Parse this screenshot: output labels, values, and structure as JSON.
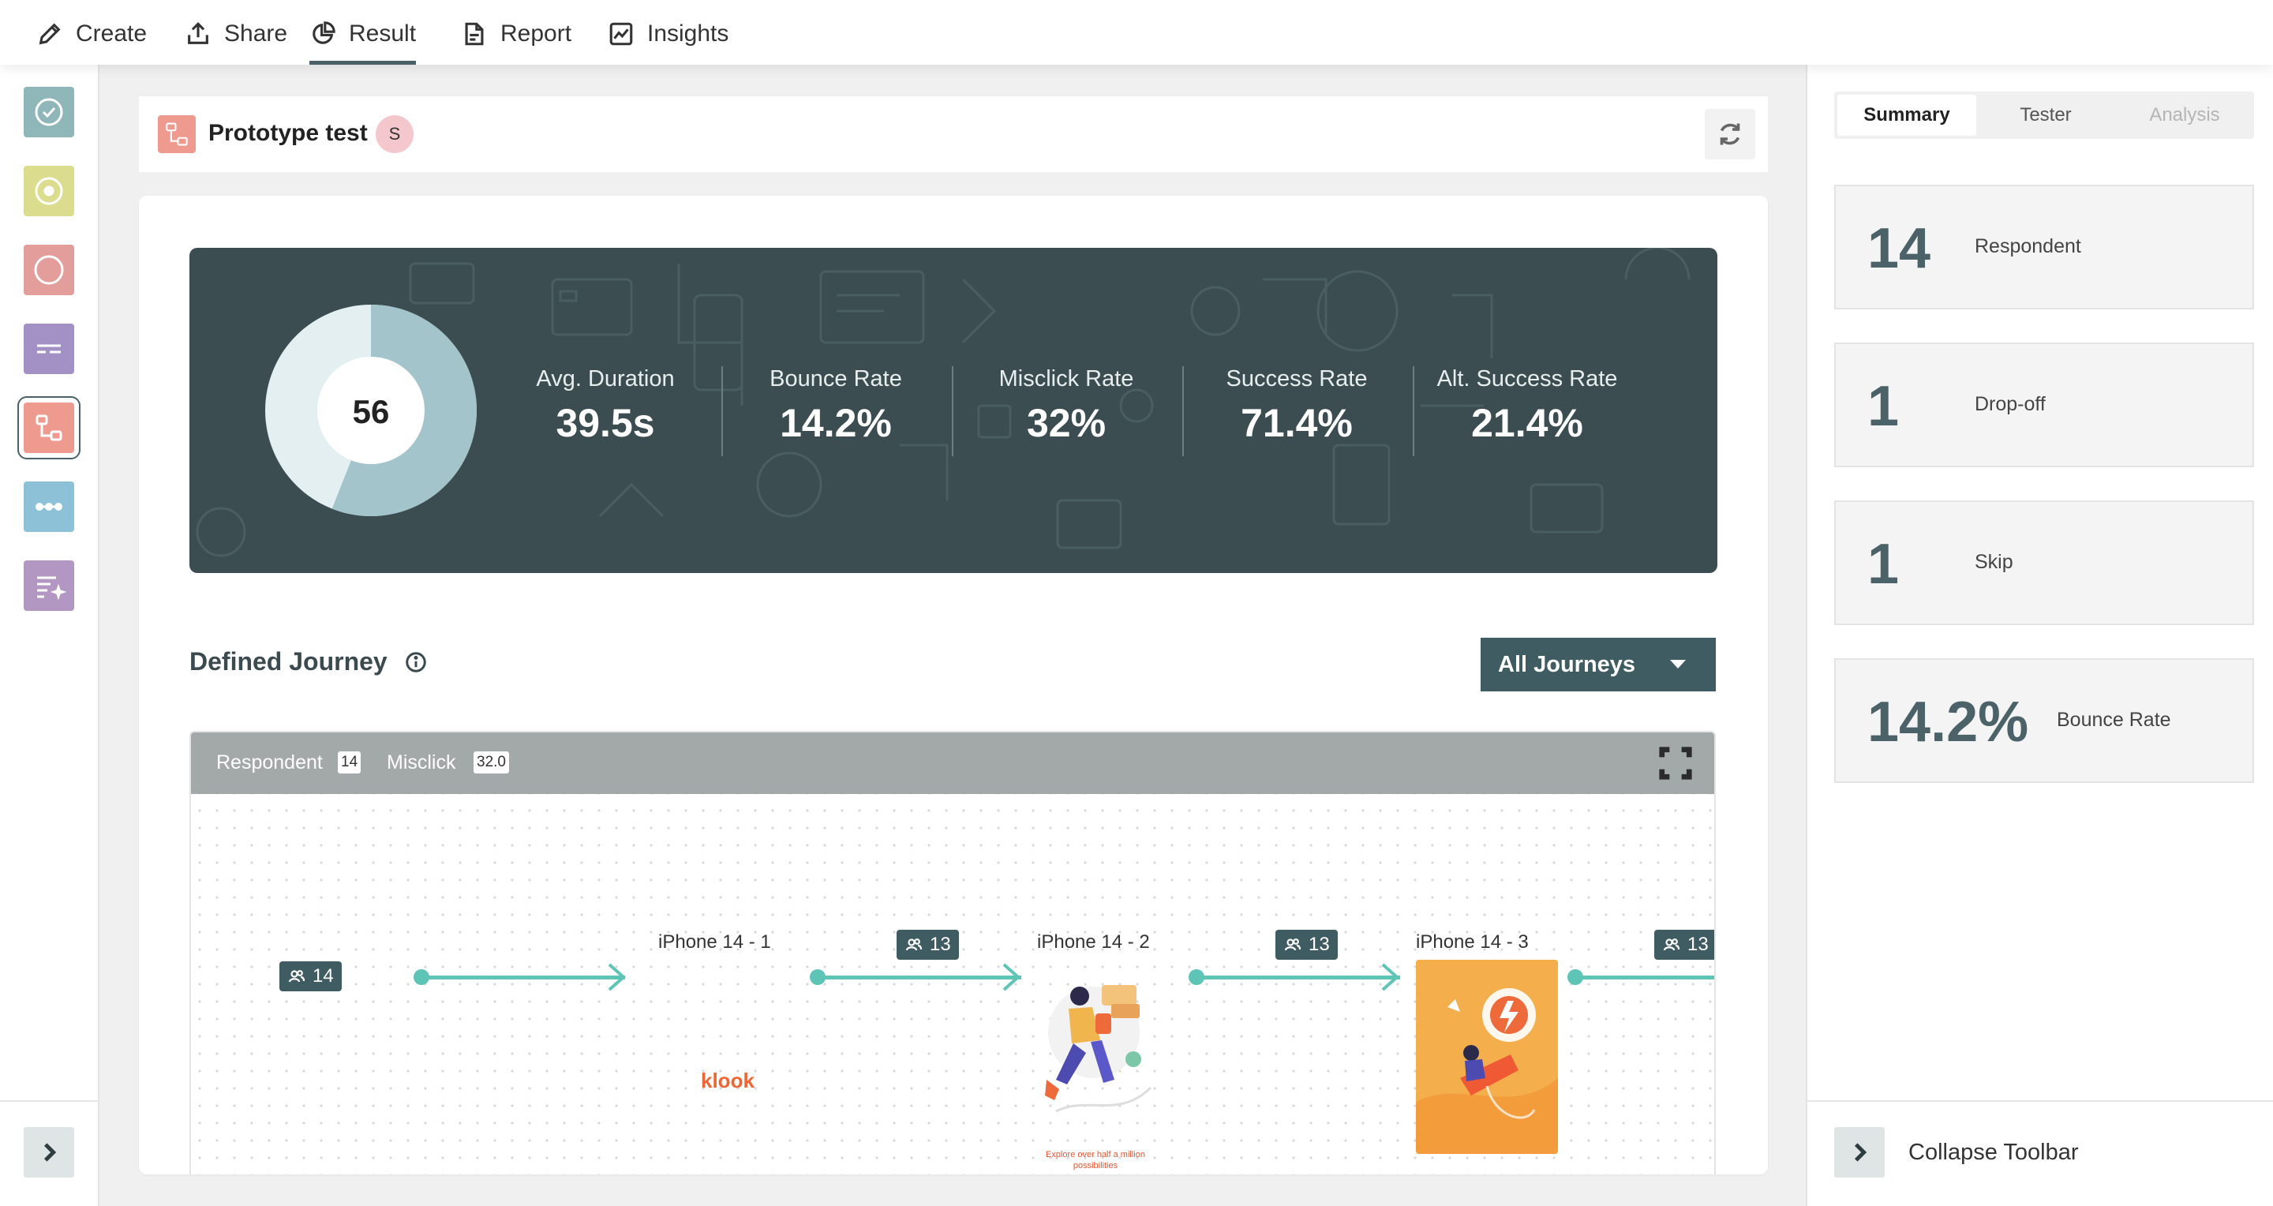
{
  "nav": {
    "tabs": [
      {
        "label": "Create",
        "icon": "pencil-icon"
      },
      {
        "label": "Share",
        "icon": "share-icon"
      },
      {
        "label": "Result",
        "icon": "pie-chart-icon",
        "active": true
      },
      {
        "label": "Report",
        "icon": "document-icon"
      },
      {
        "label": "Insights",
        "icon": "line-chart-icon"
      }
    ]
  },
  "rail": {
    "colors": [
      "#8fb6b8",
      "#dbdc8e",
      "#e39e9b",
      "#a391c6",
      "#ee9a8f",
      "#8cc1d7",
      "#b197c2"
    ],
    "icons": [
      "check-circle-icon",
      "target-icon",
      "circle-icon",
      "text-lines-icon",
      "prototype-flow-icon",
      "dots-line-icon",
      "sparkle-list-icon"
    ]
  },
  "header": {
    "title": "Prototype test",
    "avatar_initial": "S"
  },
  "stats": {
    "donut_value": "56",
    "donut_fraction": 0.56,
    "items": [
      {
        "label": "Avg. Duration",
        "value": "39.5s"
      },
      {
        "label": "Bounce Rate",
        "value": "14.2%"
      },
      {
        "label": "Misclick Rate",
        "value": "32%"
      },
      {
        "label": "Success Rate",
        "value": "71.4%"
      },
      {
        "label": "Alt. Success Rate",
        "value": "21.4%"
      }
    ]
  },
  "journey": {
    "title": "Defined Journey",
    "dropdown_value": "All Journeys",
    "bar": {
      "respondent_label": "Respondent",
      "respondent_count": "14",
      "misclick_label": "Misclick",
      "misclick_value": "32.0"
    },
    "counts": [
      "14",
      "13",
      "13",
      "13"
    ],
    "screens": [
      {
        "name": "iPhone 14 - 1",
        "brand": "klook"
      },
      {
        "name": "iPhone 14 - 2",
        "caption": "Explore over half a million possibilities"
      },
      {
        "name": "iPhone 14 - 3"
      }
    ]
  },
  "summary": {
    "tabs": [
      {
        "label": "Summary",
        "active": true
      },
      {
        "label": "Tester"
      },
      {
        "label": "Analysis",
        "disabled": true
      }
    ],
    "metrics": [
      {
        "value": "14",
        "label": "Respondent"
      },
      {
        "value": "1",
        "label": "Drop-off"
      },
      {
        "value": "1",
        "label": "Skip"
      },
      {
        "value": "14.2%",
        "label": "Bounce Rate"
      }
    ],
    "collapse_label": "Collapse Toolbar"
  },
  "colors": {
    "banner": "#3b4d51",
    "accent": "#3f5c63",
    "flow": "#5ec4b6"
  }
}
